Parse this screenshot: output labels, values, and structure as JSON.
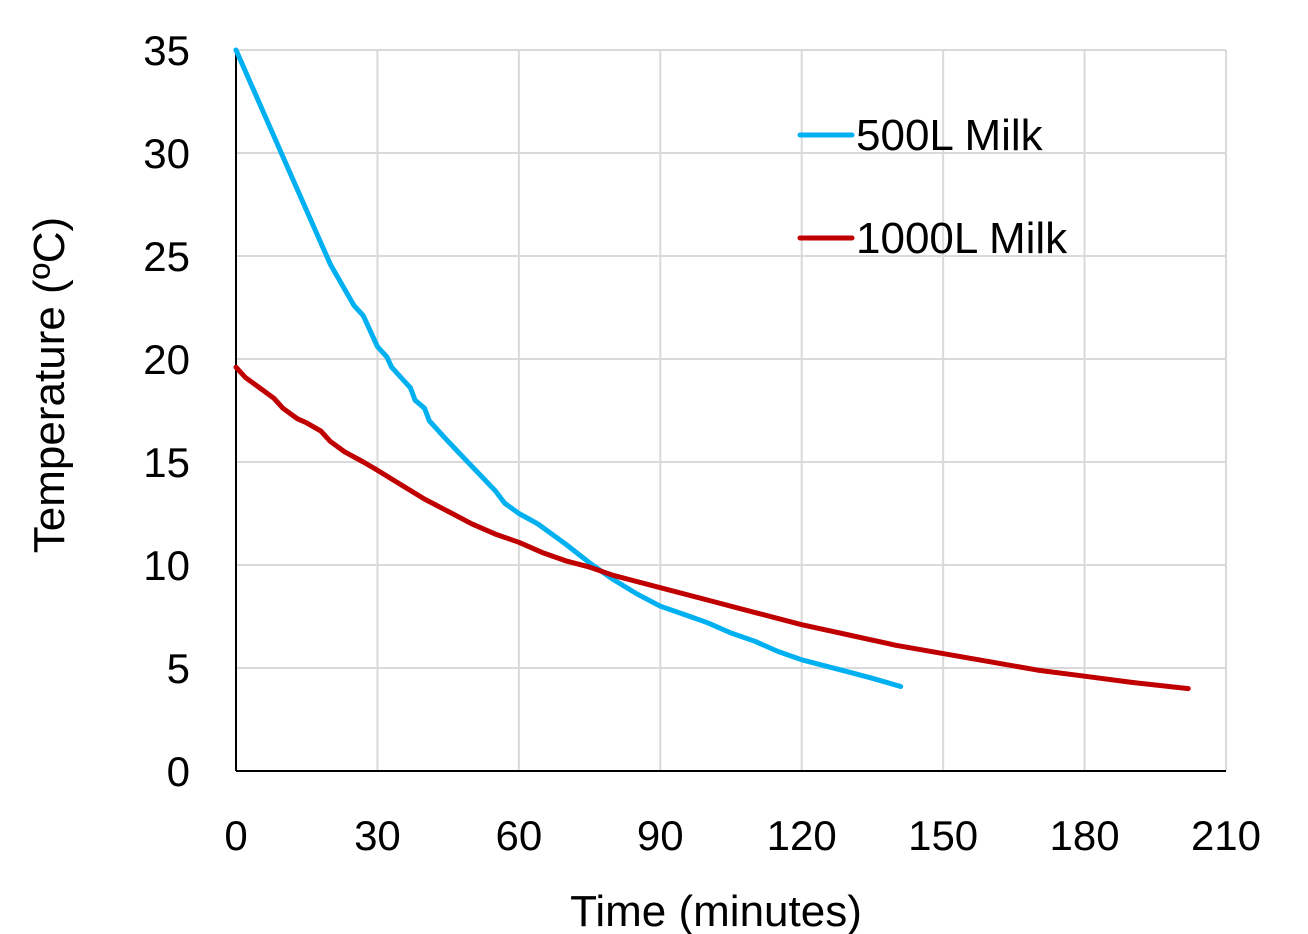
{
  "chart_data": {
    "type": "line",
    "title": "",
    "xlabel": "Time (minutes)",
    "ylabel": "Temperature (ºC)",
    "xlim": [
      0,
      210
    ],
    "ylim": [
      0,
      35
    ],
    "xticks": [
      0,
      30,
      60,
      90,
      120,
      150,
      180,
      210
    ],
    "yticks": [
      0,
      5,
      10,
      15,
      20,
      25,
      30,
      35
    ],
    "grid": true,
    "legend_position": "top-right",
    "series": [
      {
        "name": "500L Milk",
        "color": "#00B0F0",
        "x": [
          0,
          5,
          10,
          15,
          20,
          25,
          27,
          30,
          32,
          33,
          35,
          37,
          38,
          40,
          41,
          45,
          50,
          55,
          57,
          60,
          64,
          70,
          75,
          80,
          85,
          90,
          95,
          100,
          105,
          110,
          115,
          120,
          125,
          130,
          135,
          141
        ],
        "y": [
          35,
          32.4,
          29.8,
          27.2,
          24.6,
          22.6,
          22.1,
          20.6,
          20.1,
          19.6,
          19.1,
          18.6,
          18.0,
          17.6,
          17.0,
          16.0,
          14.8,
          13.6,
          13.0,
          12.5,
          12.0,
          11.0,
          10.1,
          9.3,
          8.6,
          8.0,
          7.6,
          7.2,
          6.7,
          6.3,
          5.8,
          5.4,
          5.1,
          4.8,
          4.5,
          4.1
        ]
      },
      {
        "name": "1000L Milk",
        "color": "#C00000",
        "x": [
          0,
          2,
          5,
          8,
          10,
          13,
          15,
          18,
          20,
          23,
          27,
          30,
          35,
          40,
          45,
          50,
          55,
          60,
          65,
          70,
          75,
          80,
          90,
          100,
          110,
          120,
          130,
          140,
          150,
          160,
          170,
          180,
          190,
          202
        ],
        "y": [
          19.6,
          19.1,
          18.6,
          18.1,
          17.6,
          17.1,
          16.9,
          16.5,
          16.0,
          15.5,
          15.0,
          14.6,
          13.9,
          13.2,
          12.6,
          12.0,
          11.5,
          11.1,
          10.6,
          10.2,
          9.9,
          9.5,
          8.9,
          8.3,
          7.7,
          7.1,
          6.6,
          6.1,
          5.7,
          5.3,
          4.9,
          4.6,
          4.3,
          4.0
        ]
      }
    ]
  }
}
